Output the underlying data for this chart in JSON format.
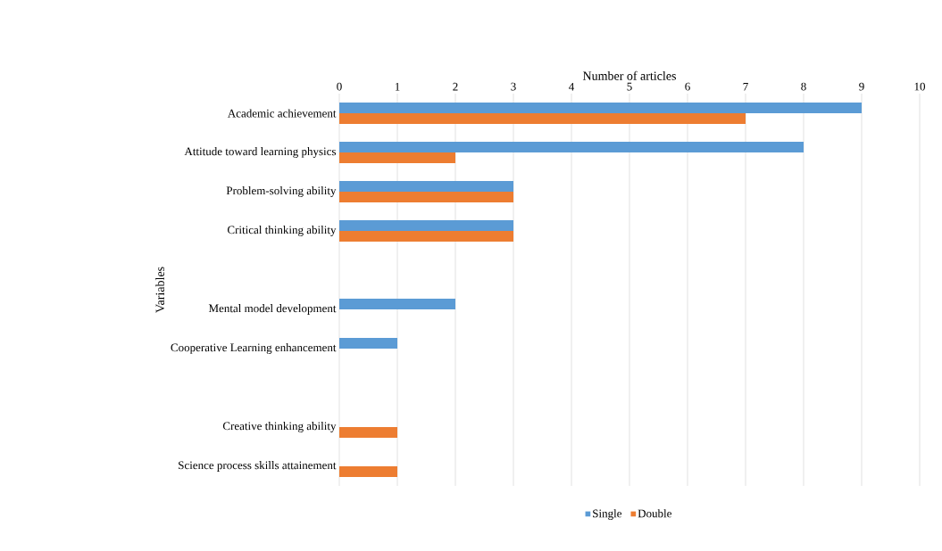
{
  "chart_data": {
    "type": "bar",
    "orientation": "horizontal",
    "xlabel": "Number of articles",
    "ylabel": "Variables",
    "categories": [
      "Academic achievement",
      "Attitude toward learning physics",
      "Problem-solving ability",
      "Critical thinking ability",
      null,
      "Mental model development",
      "Cooperative Learning enhancement",
      null,
      "Creative thinking ability",
      "Science process skills attainement"
    ],
    "series": [
      {
        "name": "Single",
        "color": "#5b9bd5",
        "values": [
          9,
          8,
          3,
          3,
          null,
          2,
          1,
          null,
          null,
          null
        ]
      },
      {
        "name": "Double",
        "color": "#ed7d31",
        "values": [
          7,
          2,
          3,
          3,
          null,
          null,
          null,
          null,
          1,
          1
        ]
      }
    ],
    "xlim": [
      0,
      10
    ],
    "xticks": [
      0,
      1,
      2,
      3,
      4,
      5,
      6,
      7,
      8,
      9,
      10
    ],
    "grid": "x",
    "legend": "bottom"
  }
}
